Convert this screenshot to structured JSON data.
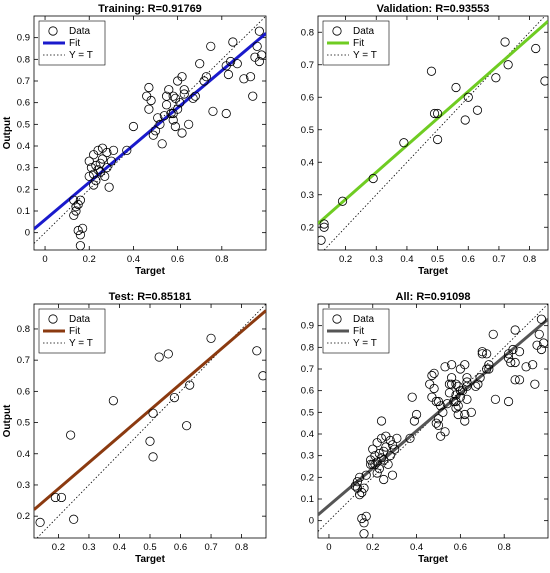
{
  "chart_data": [
    {
      "type": "scatter",
      "title": "Training: R=0.91769",
      "xlabel": "Target",
      "ylabel": "Output",
      "xlim": [
        -0.05,
        1.0
      ],
      "ylim": [
        -0.08,
        1.0
      ],
      "xticks": [
        "0",
        "0.2",
        "0.4",
        "0.6",
        "0.8"
      ],
      "yticks": [
        "0",
        "0.1",
        "0.2",
        "0.3",
        "0.4",
        "0.5",
        "0.6",
        "0.7",
        "0.8",
        "0.9"
      ],
      "legend": {
        "placement": "top-left",
        "entries": [
          "Data",
          "Fit",
          "Y = T"
        ]
      },
      "fit": {
        "slope": 0.86,
        "intercept": 0.06,
        "color": "#1a1acc"
      },
      "points": [
        [
          0.13,
          0.15
        ],
        [
          0.14,
          0.12
        ],
        [
          0.13,
          0.08
        ],
        [
          0.14,
          0.1
        ],
        [
          0.15,
          0.13
        ],
        [
          0.16,
          0.15
        ],
        [
          0.15,
          0.01
        ],
        [
          0.16,
          -0.01
        ],
        [
          0.17,
          0.02
        ],
        [
          0.16,
          -0.06
        ],
        [
          0.2,
          0.33
        ],
        [
          0.2,
          0.26
        ],
        [
          0.21,
          0.3
        ],
        [
          0.22,
          0.27
        ],
        [
          0.22,
          0.36
        ],
        [
          0.23,
          0.31
        ],
        [
          0.23,
          0.24
        ],
        [
          0.24,
          0.38
        ],
        [
          0.24,
          0.29
        ],
        [
          0.25,
          0.32
        ],
        [
          0.25,
          0.28
        ],
        [
          0.26,
          0.39
        ],
        [
          0.26,
          0.34
        ],
        [
          0.27,
          0.26
        ],
        [
          0.28,
          0.37
        ],
        [
          0.28,
          0.3
        ],
        [
          0.29,
          0.21
        ],
        [
          0.3,
          0.33
        ],
        [
          0.31,
          0.38
        ],
        [
          0.22,
          0.22
        ],
        [
          0.37,
          0.38
        ],
        [
          0.4,
          0.49
        ],
        [
          0.46,
          0.63
        ],
        [
          0.47,
          0.67
        ],
        [
          0.47,
          0.57
        ],
        [
          0.48,
          0.61
        ],
        [
          0.49,
          0.45
        ],
        [
          0.5,
          0.47
        ],
        [
          0.51,
          0.53
        ],
        [
          0.52,
          0.5
        ],
        [
          0.53,
          0.41
        ],
        [
          0.55,
          0.63
        ],
        [
          0.55,
          0.59
        ],
        [
          0.56,
          0.66
        ],
        [
          0.57,
          0.55
        ],
        [
          0.58,
          0.52
        ],
        [
          0.58,
          0.63
        ],
        [
          0.59,
          0.62
        ],
        [
          0.59,
          0.49
        ],
        [
          0.6,
          0.7
        ],
        [
          0.6,
          0.57
        ],
        [
          0.61,
          0.6
        ],
        [
          0.62,
          0.72
        ],
        [
          0.62,
          0.46
        ],
        [
          0.63,
          0.66
        ],
        [
          0.63,
          0.64
        ],
        [
          0.65,
          0.5
        ],
        [
          0.67,
          0.62
        ],
        [
          0.68,
          0.63
        ],
        [
          0.7,
          0.78
        ],
        [
          0.72,
          0.7
        ],
        [
          0.73,
          0.72
        ],
        [
          0.75,
          0.86
        ],
        [
          0.76,
          0.56
        ],
        [
          0.82,
          0.55
        ],
        [
          0.82,
          0.77
        ],
        [
          0.83,
          0.73
        ],
        [
          0.84,
          0.79
        ],
        [
          0.85,
          0.88
        ],
        [
          0.87,
          0.78
        ],
        [
          0.9,
          0.71
        ],
        [
          0.93,
          0.72
        ],
        [
          0.94,
          0.63
        ],
        [
          0.95,
          0.81
        ],
        [
          0.96,
          0.86
        ],
        [
          0.97,
          0.93
        ],
        [
          0.97,
          0.79
        ],
        [
          0.98,
          0.82
        ],
        [
          0.58,
          0.55
        ],
        [
          0.54,
          0.54
        ]
      ]
    },
    {
      "type": "scatter",
      "title": "Validation: R=0.93553",
      "xlabel": "Target",
      "ylabel": "",
      "xlim": [
        0.11,
        0.86
      ],
      "ylim": [
        0.13,
        0.85
      ],
      "xticks": [
        "0.2",
        "0.3",
        "0.4",
        "0.5",
        "0.6",
        "0.7",
        "0.8"
      ],
      "yticks": [
        "0.2",
        "0.3",
        "0.4",
        "0.5",
        "0.6",
        "0.7",
        "0.8"
      ],
      "legend": {
        "placement": "top-left",
        "entries": [
          "Data",
          "Fit",
          "Y = T"
        ]
      },
      "fit": {
        "slope": 0.83,
        "intercept": 0.12,
        "color": "#6fcc22"
      },
      "points": [
        [
          0.12,
          0.16
        ],
        [
          0.13,
          0.21
        ],
        [
          0.13,
          0.2
        ],
        [
          0.19,
          0.28
        ],
        [
          0.29,
          0.35
        ],
        [
          0.39,
          0.46
        ],
        [
          0.48,
          0.68
        ],
        [
          0.49,
          0.55
        ],
        [
          0.5,
          0.55
        ],
        [
          0.5,
          0.47
        ],
        [
          0.56,
          0.63
        ],
        [
          0.59,
          0.53
        ],
        [
          0.6,
          0.6
        ],
        [
          0.63,
          0.56
        ],
        [
          0.69,
          0.66
        ],
        [
          0.72,
          0.77
        ],
        [
          0.73,
          0.7
        ],
        [
          0.82,
          0.75
        ],
        [
          0.85,
          0.65
        ]
      ]
    },
    {
      "type": "scatter",
      "title": "Test: R=0.85181",
      "xlabel": "Target",
      "ylabel": "Output",
      "xlim": [
        0.12,
        0.88
      ],
      "ylim": [
        0.13,
        0.88
      ],
      "xticks": [
        "0.2",
        "0.3",
        "0.4",
        "0.5",
        "0.6",
        "0.7",
        "0.8"
      ],
      "yticks": [
        "0.2",
        "0.3",
        "0.4",
        "0.5",
        "0.6",
        "0.7",
        "0.8"
      ],
      "legend": {
        "placement": "top-left",
        "entries": [
          "Data",
          "Fit",
          "Y = T"
        ]
      },
      "fit": {
        "slope": 0.84,
        "intercept": 0.12,
        "color": "#8b3a10"
      },
      "points": [
        [
          0.14,
          0.18
        ],
        [
          0.19,
          0.26
        ],
        [
          0.21,
          0.26
        ],
        [
          0.24,
          0.46
        ],
        [
          0.25,
          0.19
        ],
        [
          0.38,
          0.57
        ],
        [
          0.5,
          0.44
        ],
        [
          0.51,
          0.39
        ],
        [
          0.51,
          0.53
        ],
        [
          0.53,
          0.71
        ],
        [
          0.56,
          0.72
        ],
        [
          0.58,
          0.58
        ],
        [
          0.62,
          0.49
        ],
        [
          0.63,
          0.62
        ],
        [
          0.7,
          0.77
        ],
        [
          0.85,
          0.73
        ],
        [
          0.87,
          0.65
        ]
      ]
    },
    {
      "type": "scatter",
      "title": "All: R=0.91098",
      "xlabel": "Target",
      "ylabel": "",
      "xlim": [
        -0.05,
        1.0
      ],
      "ylim": [
        -0.08,
        1.0
      ],
      "xticks": [
        "0",
        "0.2",
        "0.4",
        "0.6",
        "0.8"
      ],
      "yticks": [
        "0",
        "0.1",
        "0.2",
        "0.3",
        "0.4",
        "0.5",
        "0.6",
        "0.7",
        "0.8",
        "0.9"
      ],
      "legend": {
        "placement": "top-left",
        "entries": [
          "Data",
          "Fit",
          "Y = T"
        ]
      },
      "fit": {
        "slope": 0.86,
        "intercept": 0.07,
        "color": "#555555"
      },
      "points": [
        [
          0.12,
          0.16
        ],
        [
          0.13,
          0.15
        ],
        [
          0.13,
          0.18
        ],
        [
          0.14,
          0.12
        ],
        [
          0.14,
          0.2
        ],
        [
          0.15,
          0.13
        ],
        [
          0.15,
          0.01
        ],
        [
          0.16,
          -0.01
        ],
        [
          0.16,
          0.15
        ],
        [
          0.16,
          -0.06
        ],
        [
          0.17,
          0.02
        ],
        [
          0.17,
          0.21
        ],
        [
          0.19,
          0.26
        ],
        [
          0.19,
          0.28
        ],
        [
          0.2,
          0.33
        ],
        [
          0.2,
          0.26
        ],
        [
          0.21,
          0.3
        ],
        [
          0.21,
          0.26
        ],
        [
          0.22,
          0.27
        ],
        [
          0.22,
          0.36
        ],
        [
          0.22,
          0.22
        ],
        [
          0.23,
          0.31
        ],
        [
          0.23,
          0.24
        ],
        [
          0.24,
          0.38
        ],
        [
          0.24,
          0.29
        ],
        [
          0.24,
          0.46
        ],
        [
          0.25,
          0.32
        ],
        [
          0.25,
          0.28
        ],
        [
          0.25,
          0.19
        ],
        [
          0.26,
          0.39
        ],
        [
          0.26,
          0.34
        ],
        [
          0.27,
          0.26
        ],
        [
          0.28,
          0.37
        ],
        [
          0.28,
          0.3
        ],
        [
          0.29,
          0.21
        ],
        [
          0.29,
          0.35
        ],
        [
          0.3,
          0.33
        ],
        [
          0.31,
          0.38
        ],
        [
          0.37,
          0.38
        ],
        [
          0.38,
          0.57
        ],
        [
          0.39,
          0.46
        ],
        [
          0.4,
          0.49
        ],
        [
          0.46,
          0.63
        ],
        [
          0.47,
          0.67
        ],
        [
          0.47,
          0.57
        ],
        [
          0.48,
          0.61
        ],
        [
          0.48,
          0.68
        ],
        [
          0.49,
          0.45
        ],
        [
          0.49,
          0.55
        ],
        [
          0.5,
          0.47
        ],
        [
          0.5,
          0.55
        ],
        [
          0.5,
          0.44
        ],
        [
          0.51,
          0.53
        ],
        [
          0.51,
          0.39
        ],
        [
          0.52,
          0.5
        ],
        [
          0.53,
          0.41
        ],
        [
          0.53,
          0.71
        ],
        [
          0.54,
          0.54
        ],
        [
          0.55,
          0.63
        ],
        [
          0.55,
          0.59
        ],
        [
          0.56,
          0.66
        ],
        [
          0.56,
          0.72
        ],
        [
          0.56,
          0.63
        ],
        [
          0.57,
          0.55
        ],
        [
          0.58,
          0.52
        ],
        [
          0.58,
          0.63
        ],
        [
          0.58,
          0.58
        ],
        [
          0.58,
          0.55
        ],
        [
          0.59,
          0.62
        ],
        [
          0.59,
          0.49
        ],
        [
          0.59,
          0.53
        ],
        [
          0.6,
          0.7
        ],
        [
          0.6,
          0.57
        ],
        [
          0.6,
          0.6
        ],
        [
          0.61,
          0.6
        ],
        [
          0.62,
          0.72
        ],
        [
          0.62,
          0.46
        ],
        [
          0.62,
          0.49
        ],
        [
          0.63,
          0.66
        ],
        [
          0.63,
          0.64
        ],
        [
          0.63,
          0.62
        ],
        [
          0.63,
          0.56
        ],
        [
          0.65,
          0.5
        ],
        [
          0.67,
          0.62
        ],
        [
          0.68,
          0.63
        ],
        [
          0.69,
          0.66
        ],
        [
          0.7,
          0.78
        ],
        [
          0.7,
          0.77
        ],
        [
          0.72,
          0.7
        ],
        [
          0.72,
          0.77
        ],
        [
          0.73,
          0.72
        ],
        [
          0.73,
          0.7
        ],
        [
          0.75,
          0.86
        ],
        [
          0.76,
          0.56
        ],
        [
          0.82,
          0.55
        ],
        [
          0.82,
          0.77
        ],
        [
          0.82,
          0.75
        ],
        [
          0.83,
          0.73
        ],
        [
          0.84,
          0.79
        ],
        [
          0.85,
          0.88
        ],
        [
          0.85,
          0.65
        ],
        [
          0.85,
          0.73
        ],
        [
          0.87,
          0.78
        ],
        [
          0.87,
          0.65
        ],
        [
          0.9,
          0.71
        ],
        [
          0.93,
          0.72
        ],
        [
          0.94,
          0.63
        ],
        [
          0.95,
          0.81
        ],
        [
          0.96,
          0.86
        ],
        [
          0.97,
          0.93
        ],
        [
          0.97,
          0.79
        ],
        [
          0.98,
          0.82
        ]
      ]
    }
  ]
}
